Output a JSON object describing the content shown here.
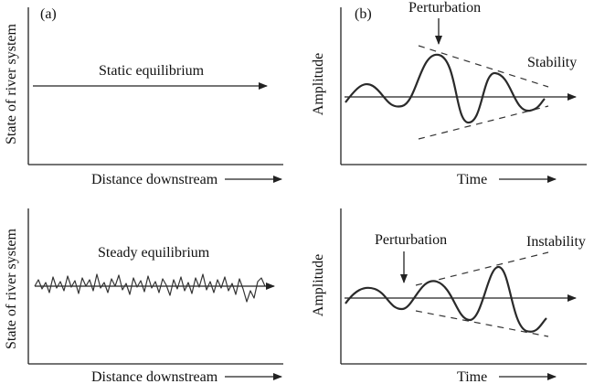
{
  "panel_a_label": "(a)",
  "panel_b_label": "(b)",
  "top_left": {
    "ylabel": "State of river system",
    "xlabel": "Distance downstream",
    "annotation": "Static equilibrium"
  },
  "bottom_left": {
    "ylabel": "State of river system",
    "xlabel": "Distance downstream",
    "annotation": "Steady equilibrium"
  },
  "top_right": {
    "ylabel": "Amplitude",
    "xlabel": "Time",
    "perturbation": "Perturbation",
    "annotation": "Stability"
  },
  "bottom_right": {
    "ylabel": "Amplitude",
    "xlabel": "Time",
    "perturbation": "Perturbation",
    "annotation": "Instability"
  }
}
